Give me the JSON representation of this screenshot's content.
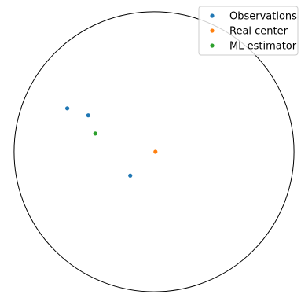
{
  "chart_data": {
    "type": "scatter",
    "axes_visible": false,
    "grid": false,
    "legend_placement": "top-right",
    "xlim": [
      -1.05,
      1.05
    ],
    "ylim": [
      -1.05,
      1.05
    ],
    "boundary_circle": {
      "center": [
        0,
        0
      ],
      "radius": 1.0,
      "color": "#000000"
    },
    "series": [
      {
        "name": "Observations",
        "color": "#1f77b4",
        "points": [
          {
            "x": -0.62,
            "y": 0.31
          },
          {
            "x": -0.47,
            "y": 0.26
          },
          {
            "x": -0.17,
            "y": -0.17
          }
        ]
      },
      {
        "name": "Real center",
        "color": "#ff7f0e",
        "points": [
          {
            "x": 0.01,
            "y": 0.0
          }
        ]
      },
      {
        "name": "ML estimator",
        "color": "#2ca02c",
        "points": [
          {
            "x": -0.42,
            "y": 0.13
          }
        ]
      }
    ]
  }
}
